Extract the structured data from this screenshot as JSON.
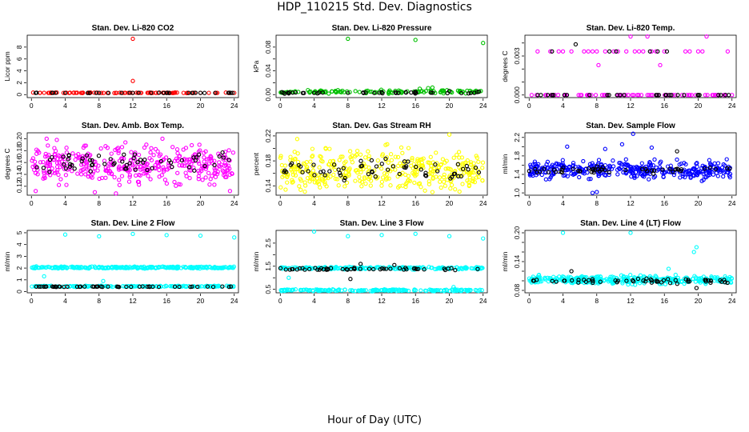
{
  "page": {
    "title": "HDP_110215  Std. Dev. Diagnostics",
    "xlabel": "Hour of Day (UTC)"
  },
  "chart_data": [
    {
      "type": "scatter",
      "title": "Stan. Dev. Li-820 CO2",
      "ylabel": "Licor ppm",
      "xticks": [
        0,
        4,
        8,
        12,
        16,
        20,
        24
      ],
      "yticks": [
        0,
        2,
        4,
        6,
        8
      ],
      "xlim": [
        -0.5,
        24.5
      ],
      "ylim": [
        -0.5,
        10
      ],
      "series": [
        {
          "name": "lines",
          "color": "#ff0000",
          "points": [
            [
              0.2,
              0.35
            ],
            [
              1,
              0.3
            ],
            [
              2,
              0.3
            ],
            [
              3,
              0.35
            ],
            [
              4,
              0.3
            ],
            [
              5,
              0.3
            ],
            [
              6,
              0.3
            ],
            [
              7,
              0.35
            ],
            [
              8,
              0.3
            ],
            [
              9,
              0.3
            ],
            [
              10,
              0.3
            ],
            [
              11,
              0.3
            ],
            [
              12,
              9.4
            ],
            [
              12,
              2.3
            ],
            [
              13,
              0.3
            ],
            [
              14,
              0.35
            ],
            [
              15,
              0.3
            ],
            [
              16,
              0.3
            ],
            [
              17,
              0.35
            ],
            [
              18,
              0.3
            ],
            [
              19,
              0.3
            ],
            [
              20,
              0.3
            ],
            [
              21,
              0.3
            ],
            [
              22,
              0.3
            ],
            [
              23,
              0.35
            ],
            [
              24,
              0.3
            ]
          ],
          "dense": {
            "y": 0.3,
            "spread": 0.06,
            "count": 70
          }
        },
        {
          "name": "reference",
          "color": "#000000",
          "points": [
            [
              0.5,
              0.3
            ],
            [
              4,
              0.3
            ],
            [
              8,
              0.3
            ],
            [
              12,
              0.3
            ],
            [
              16,
              0.3
            ],
            [
              20,
              0.3
            ],
            [
              23.8,
              0.3
            ]
          ],
          "dense": {
            "y": 0.3,
            "spread": 0.04,
            "count": 25
          }
        }
      ]
    },
    {
      "type": "scatter",
      "title": "Stan. Dev. Li-820 Pressure",
      "ylabel": "kPa",
      "xticks": [
        0,
        4,
        8,
        12,
        16,
        20,
        24
      ],
      "yticks": [
        0,
        0.02,
        0.04,
        0.06,
        0.08
      ],
      "yticklabels": [
        "0.00",
        "",
        "0.04",
        "",
        "0.08"
      ],
      "xlim": [
        -0.5,
        24.5
      ],
      "ylim": [
        -0.005,
        0.1
      ],
      "series": [
        {
          "name": "lines",
          "color": "#00c000",
          "points": [
            [
              8,
              0.094
            ],
            [
              16,
              0.092
            ],
            [
              24,
              0.087
            ],
            [
              17.5,
              0.011
            ],
            [
              18,
              0.012
            ],
            [
              16.5,
              0.01
            ]
          ],
          "dense": {
            "y": 0.005,
            "spread": 0.004,
            "count": 120
          }
        },
        {
          "name": "reference",
          "color": "#000000",
          "points": [
            [
              1,
              0.002
            ],
            [
              4,
              0.003
            ],
            [
              8,
              0.003
            ],
            [
              12,
              0.004
            ],
            [
              16,
              0.005
            ],
            [
              20,
              0.006
            ],
            [
              23.5,
              0.005
            ]
          ],
          "dense": {
            "y": 0.003,
            "spread": 0.002,
            "count": 35
          }
        }
      ]
    },
    {
      "type": "scatter",
      "title": "Stan. Dev. Li-820 Temp.",
      "ylabel": "degrees C",
      "xticks": [
        0,
        4,
        8,
        12,
        16,
        20,
        24
      ],
      "yticks": [
        0,
        0.001,
        0.002,
        0.003,
        0.004
      ],
      "yticklabels": [
        "0.000",
        "",
        "",
        "0.003",
        ""
      ],
      "xlim": [
        -0.5,
        24.5
      ],
      "ylim": [
        -0.0002,
        0.0046
      ],
      "series": [
        {
          "name": "lines",
          "color": "#ff00ff",
          "points": [
            [
              0.3,
              0
            ],
            [
              1,
              0.00335
            ],
            [
              2.5,
              0.00335
            ],
            [
              3.5,
              0.00335
            ],
            [
              4,
              0.00335
            ],
            [
              5,
              0.00335
            ],
            [
              6.5,
              0.00335
            ],
            [
              7,
              0.00335
            ],
            [
              7.5,
              0.00335
            ],
            [
              8,
              0.00335
            ],
            [
              8.2,
              0.0023
            ],
            [
              9,
              0.00335
            ],
            [
              10,
              0.00335
            ],
            [
              10.5,
              0.00335
            ],
            [
              11.5,
              0.00335
            ],
            [
              12,
              0.0045
            ],
            [
              12.5,
              0.00335
            ],
            [
              13,
              0.00335
            ],
            [
              13.5,
              0.00335
            ],
            [
              14,
              0.0045
            ],
            [
              14.5,
              0.00335
            ],
            [
              15,
              0.00335
            ],
            [
              15.5,
              0.0023
            ],
            [
              16,
              0.00335
            ],
            [
              18.5,
              0.00335
            ],
            [
              19,
              0.00335
            ],
            [
              20,
              0.00335
            ],
            [
              20.5,
              0.00335
            ],
            [
              21,
              0.0045
            ],
            [
              23.5,
              0.00335
            ],
            [
              12.2,
              0
            ],
            [
              14,
              0
            ],
            [
              17,
              0
            ],
            [
              19,
              0
            ],
            [
              22,
              0
            ],
            [
              24,
              0
            ]
          ],
          "dense": {
            "y": 0,
            "spread": 0,
            "count": 60
          }
        },
        {
          "name": "reference",
          "color": "#000000",
          "points": [
            [
              2.7,
              0.00335
            ],
            [
              5.5,
              0.0039
            ],
            [
              9.5,
              0.00335
            ],
            [
              10.3,
              0.00335
            ],
            [
              14.3,
              0.00335
            ],
            [
              15.2,
              0.00335
            ],
            [
              16.3,
              0.00335
            ]
          ],
          "dense": {
            "y": 0,
            "spread": 0,
            "count": 30
          }
        }
      ]
    },
    {
      "type": "scatter",
      "title": "Stan. Dev. Amb. Box Temp.",
      "ylabel": "degrees C",
      "xticks": [
        0,
        4,
        8,
        12,
        16,
        20,
        24
      ],
      "yticks": [
        0.12,
        0.14,
        0.16,
        0.18,
        0.2
      ],
      "yticklabels": [
        "0.12",
        "0.14",
        "0.16",
        "0.18",
        "0.20"
      ],
      "xlim": [
        -0.5,
        24.5
      ],
      "ylim": [
        0.105,
        0.21
      ],
      "series": [
        {
          "name": "lines",
          "color": "#ff00ff",
          "points": [
            [
              0.5,
              0.112
            ],
            [
              1.8,
              0.2
            ],
            [
              3,
              0.198
            ],
            [
              7.5,
              0.11
            ],
            [
              10,
              0.108
            ],
            [
              15.5,
              0.2
            ],
            [
              23.5,
              0.112
            ]
          ],
          "dense": {
            "y": 0.155,
            "spread": 0.045,
            "count": 380
          }
        },
        {
          "name": "reference",
          "color": "#000000",
          "points": [],
          "dense": {
            "y": 0.16,
            "spread": 0.025,
            "count": 60
          }
        }
      ]
    },
    {
      "type": "scatter",
      "title": "Stan. Dev. Gas Stream RH",
      "ylabel": "percent",
      "xticks": [
        0,
        4,
        8,
        12,
        16,
        20,
        24
      ],
      "yticks": [
        0.14,
        0.16,
        0.18,
        0.2,
        0.22
      ],
      "yticklabels": [
        "0.14",
        "",
        "0.18",
        "",
        "0.22"
      ],
      "xlim": [
        -0.5,
        24.5
      ],
      "ylim": [
        0.125,
        0.225
      ],
      "series": [
        {
          "name": "lines",
          "color": "#ffff00",
          "points": [
            [
              2,
              0.215
            ],
            [
              18,
              0.13
            ],
            [
              20,
              0.222
            ]
          ],
          "dense": {
            "y": 0.165,
            "spread": 0.048,
            "count": 380
          }
        },
        {
          "name": "reference",
          "color": "#000000",
          "points": [],
          "dense": {
            "y": 0.165,
            "spread": 0.025,
            "count": 60
          }
        }
      ]
    },
    {
      "type": "scatter",
      "title": "Stan. Dev. Sample Flow",
      "ylabel": "ml/min",
      "xticks": [
        0,
        4,
        8,
        12,
        16,
        20,
        24
      ],
      "yticks": [
        1.0,
        1.2,
        1.4,
        1.6,
        1.8,
        2.0,
        2.2
      ],
      "yticklabels": [
        "1.0",
        "1.4",
        "1.8",
        "2.2"
      ],
      "yticklabelvalues": [
        1.0,
        1.4,
        1.8,
        2.2
      ],
      "xlim": [
        -0.5,
        24.5
      ],
      "ylim": [
        0.95,
        2.3
      ],
      "series": [
        {
          "name": "lines",
          "color": "#0000ff",
          "points": [
            [
              4.5,
              2.0
            ],
            [
              12.3,
              2.28
            ],
            [
              7.5,
              1.0
            ],
            [
              8,
              1.02
            ],
            [
              11,
              2.05
            ],
            [
              9,
              1.95
            ],
            [
              14.5,
              1.98
            ]
          ],
          "dense": {
            "y": 1.5,
            "spread": 0.28,
            "count": 380
          }
        },
        {
          "name": "reference",
          "color": "#000000",
          "points": [
            [
              17.5,
              1.9
            ]
          ],
          "dense": {
            "y": 1.5,
            "spread": 0.1,
            "count": 50
          }
        }
      ]
    },
    {
      "type": "scatter",
      "title": "Stan. Dev. Line 2 Flow",
      "ylabel": "ml/min",
      "xticks": [
        0,
        4,
        8,
        12,
        16,
        20,
        24
      ],
      "yticks": [
        0,
        1,
        2,
        3,
        4,
        5
      ],
      "yticklabels": [
        "0",
        "1",
        "2",
        "3",
        "4",
        "5"
      ],
      "xlim": [
        -0.5,
        24.5
      ],
      "ylim": [
        -0.1,
        5.2
      ],
      "series": [
        {
          "name": "lines",
          "color": "#00ffff",
          "points": [
            [
              4,
              4.85
            ],
            [
              8,
              4.7
            ],
            [
              12,
              4.9
            ],
            [
              16,
              4.8
            ],
            [
              20,
              4.75
            ],
            [
              24,
              4.6
            ],
            [
              1.5,
              1.3
            ],
            [
              8.5,
              0.9
            ]
          ],
          "dense": {
            "y": 2.05,
            "spread": 0.12,
            "count": 260
          }
        },
        {
          "name": "lines-low",
          "color": "#00ffff",
          "points": [],
          "dense": {
            "y": 0.45,
            "spread": 0.07,
            "count": 160
          }
        },
        {
          "name": "reference",
          "color": "#000000",
          "points": [],
          "dense": {
            "y": 0.42,
            "spread": 0.03,
            "count": 50
          }
        }
      ]
    },
    {
      "type": "scatter",
      "title": "Stan. Dev. Line 3 Flow",
      "ylabel": "ml/min",
      "xticks": [
        0,
        4,
        8,
        12,
        16,
        20,
        24
      ],
      "yticks": [
        0.5,
        1.0,
        1.5,
        2.0,
        2.5
      ],
      "yticklabels": [
        "0.5",
        "",
        "1.5",
        "",
        "2.5"
      ],
      "xlim": [
        -0.5,
        24.5
      ],
      "ylim": [
        0.35,
        3.05
      ],
      "series": [
        {
          "name": "lines",
          "color": "#00ffff",
          "points": [
            [
              4,
              3.0
            ],
            [
              8,
              2.8
            ],
            [
              12,
              2.85
            ],
            [
              16,
              2.9
            ],
            [
              20,
              2.8
            ],
            [
              24,
              2.7
            ],
            [
              1,
              1.0
            ],
            [
              20.5,
              0.6
            ]
          ],
          "dense": {
            "y": 1.42,
            "spread": 0.08,
            "count": 220
          }
        },
        {
          "name": "lines-low",
          "color": "#00ffff",
          "points": [],
          "dense": {
            "y": 0.46,
            "spread": 0.06,
            "count": 180
          }
        },
        {
          "name": "reference",
          "color": "#000000",
          "points": [
            [
              8.3,
              0.95
            ],
            [
              9.5,
              1.6
            ],
            [
              13.5,
              1.55
            ]
          ],
          "dense": {
            "y": 1.38,
            "spread": 0.07,
            "count": 50
          }
        }
      ]
    },
    {
      "type": "scatter",
      "title": "Stan. Dev. Line 4 (LT) Flow",
      "ylabel": "ml/min",
      "xticks": [
        0,
        4,
        8,
        12,
        16,
        20,
        24
      ],
      "yticks": [
        0.08,
        0.1,
        0.12,
        0.14,
        0.16,
        0.18,
        0.2
      ],
      "yticklabels": [
        "0.08",
        "0.14",
        "0.20"
      ],
      "yticklabelvalues": [
        0.08,
        0.14,
        0.2
      ],
      "xlim": [
        -0.5,
        24.5
      ],
      "ylim": [
        0.075,
        0.205
      ],
      "series": [
        {
          "name": "lines",
          "color": "#00ffff",
          "points": [
            [
              4,
              0.2
            ],
            [
              12,
              0.2
            ],
            [
              19.8,
              0.17
            ],
            [
              19.5,
              0.16
            ],
            [
              16.5,
              0.125
            ]
          ],
          "dense": {
            "y": 0.102,
            "spread": 0.012,
            "count": 380
          }
        },
        {
          "name": "reference",
          "color": "#000000",
          "points": [
            [
              19.8,
              0.085
            ],
            [
              5,
              0.12
            ]
          ],
          "dense": {
            "y": 0.1,
            "spread": 0.008,
            "count": 55
          }
        }
      ]
    }
  ]
}
